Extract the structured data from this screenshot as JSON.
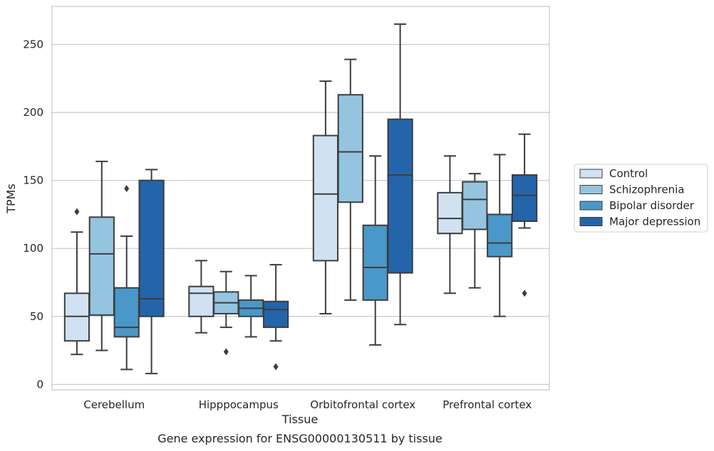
{
  "chart_data": {
    "type": "boxplot",
    "title": "Gene expression for ENSG00000130511 by tissue",
    "xlabel": "Tissue",
    "ylabel": "TPMs",
    "ylim": [
      -4,
      278
    ],
    "yticks": [
      0,
      50,
      100,
      150,
      200,
      250
    ],
    "grid": "horizontal",
    "legend_position": "right",
    "categories": [
      "Cerebellum",
      "Hipppocampus",
      "Orbitofrontal cortex",
      "Prefrontal cortex"
    ],
    "series": [
      {
        "name": "Control",
        "color": "#d0e1f2",
        "boxes": [
          {
            "whisker_low": 22,
            "q1": 32,
            "median": 50,
            "q3": 67,
            "whisker_high": 112,
            "outliers": [
              127
            ]
          },
          {
            "whisker_low": 38,
            "q1": 50,
            "median": 67,
            "q3": 72,
            "whisker_high": 91,
            "outliers": []
          },
          {
            "whisker_low": 52,
            "q1": 91,
            "median": 140,
            "q3": 183,
            "whisker_high": 223,
            "outliers": []
          },
          {
            "whisker_low": 67,
            "q1": 111,
            "median": 122,
            "q3": 141,
            "whisker_high": 168,
            "outliers": []
          }
        ]
      },
      {
        "name": "Schizophrenia",
        "color": "#94c4df",
        "boxes": [
          {
            "whisker_low": 25,
            "q1": 51,
            "median": 96,
            "q3": 123,
            "whisker_high": 164,
            "outliers": []
          },
          {
            "whisker_low": 42,
            "q1": 52,
            "median": 60,
            "q3": 68,
            "whisker_high": 83,
            "outliers": [
              24
            ]
          },
          {
            "whisker_low": 62,
            "q1": 134,
            "median": 171,
            "q3": 213,
            "whisker_high": 239,
            "outliers": []
          },
          {
            "whisker_low": 71,
            "q1": 114,
            "median": 136,
            "q3": 149,
            "whisker_high": 155,
            "outliers": []
          }
        ]
      },
      {
        "name": "Bipolar disorder",
        "color": "#4a98c9",
        "boxes": [
          {
            "whisker_low": 11,
            "q1": 35,
            "median": 42,
            "q3": 71,
            "whisker_high": 109,
            "outliers": [
              144
            ]
          },
          {
            "whisker_low": 35,
            "q1": 50,
            "median": 56,
            "q3": 62,
            "whisker_high": 80,
            "outliers": []
          },
          {
            "whisker_low": 29,
            "q1": 62,
            "median": 86,
            "q3": 117,
            "whisker_high": 168,
            "outliers": []
          },
          {
            "whisker_low": 50,
            "q1": 94,
            "median": 104,
            "q3": 125,
            "whisker_high": 169,
            "outliers": []
          }
        ]
      },
      {
        "name": "Major depression",
        "color": "#2464ab",
        "boxes": [
          {
            "whisker_low": 8,
            "q1": 50,
            "median": 63,
            "q3": 150,
            "whisker_high": 158,
            "outliers": []
          },
          {
            "whisker_low": 32,
            "q1": 42,
            "median": 55,
            "q3": 61,
            "whisker_high": 88,
            "outliers": [
              13
            ]
          },
          {
            "whisker_low": 44,
            "q1": 82,
            "median": 154,
            "q3": 195,
            "whisker_high": 265,
            "outliers": []
          },
          {
            "whisker_low": 115,
            "q1": 120,
            "median": 139,
            "q3": 154,
            "whisker_high": 184,
            "outliers": [
              67
            ]
          }
        ]
      }
    ]
  }
}
